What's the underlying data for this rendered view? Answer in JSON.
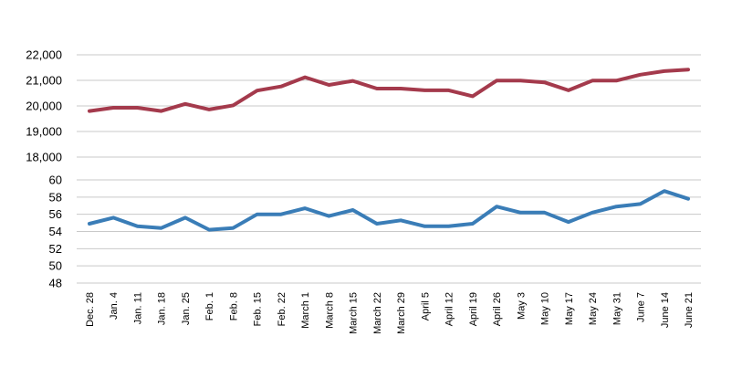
{
  "chart_data": {
    "type": "line",
    "title": "",
    "xlabel": "",
    "ylabel": "",
    "grid": true,
    "legend": "none",
    "categories": [
      "Dec. 28",
      "Jan. 4",
      "Jan. 11",
      "Jan. 18",
      "Jan. 25",
      "Feb. 1",
      "Feb. 8",
      "Feb. 15",
      "Feb. 22",
      "March 1",
      "March 8",
      "March 15",
      "March 22",
      "March 29",
      "April 5",
      "April 12",
      "April 19",
      "April 26",
      "May 3",
      "May 10",
      "May 17",
      "May 24",
      "May 31",
      "June 7",
      "June 14",
      "June 21"
    ],
    "axes": {
      "upper": {
        "ticks": [
          18000,
          19000,
          20000,
          21000,
          22000
        ],
        "tick_labels": [
          "18,000",
          "19,000",
          "20,000",
          "21,000",
          "22,000"
        ],
        "ylim": [
          18000,
          22000
        ]
      },
      "lower": {
        "ticks": [
          48,
          50,
          52,
          54,
          56,
          58,
          60
        ],
        "tick_labels": [
          "48",
          "50",
          "52",
          "54",
          "56",
          "58",
          "60"
        ],
        "ylim": [
          48,
          60
        ]
      }
    },
    "series": [
      {
        "axis": "upper",
        "color": "#a43a4c",
        "values": [
          19800,
          19930,
          19930,
          19800,
          20080,
          19860,
          20020,
          20600,
          20760,
          21120,
          20820,
          20980,
          20680,
          20680,
          20610,
          20610,
          20380,
          20990,
          20990,
          20920,
          20610,
          20990,
          20990,
          21220,
          21360,
          21420
        ]
      },
      {
        "axis": "lower",
        "color": "#3a7db7",
        "values": [
          54.9,
          55.6,
          54.6,
          54.4,
          55.6,
          54.2,
          54.4,
          56.0,
          56.0,
          56.7,
          55.8,
          56.5,
          54.9,
          55.3,
          54.6,
          54.6,
          54.9,
          56.9,
          56.2,
          56.2,
          55.1,
          56.2,
          56.9,
          57.2,
          58.7,
          57.8
        ]
      }
    ]
  }
}
